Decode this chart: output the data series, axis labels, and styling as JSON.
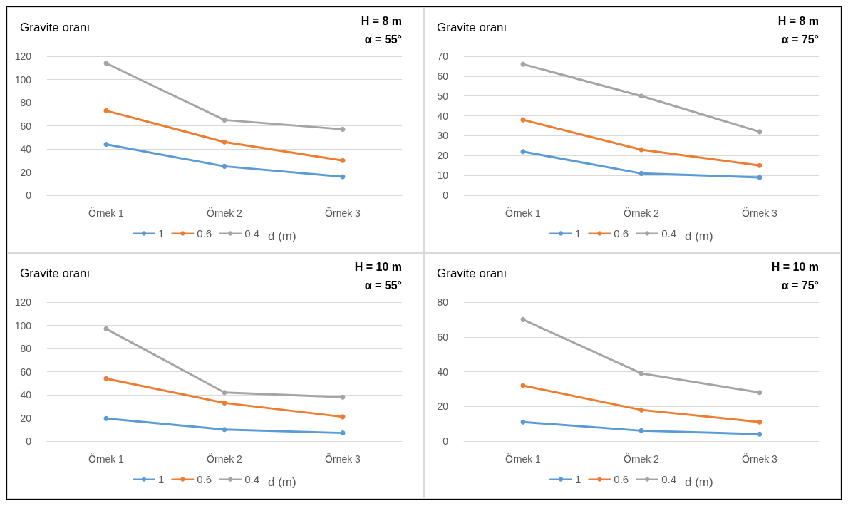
{
  "chart_data": [
    {
      "type": "line",
      "title": "Gravite oranı",
      "annotations": [
        "H = 8 m",
        "α = 55°"
      ],
      "categories": [
        "Örnek 1",
        "Örnek 2",
        "Örnek 3"
      ],
      "ylim": [
        0,
        120
      ],
      "yticks": [
        0,
        20,
        40,
        60,
        80,
        100,
        120
      ],
      "grid": "y",
      "legend": "bottom",
      "legend_title": "d (m)",
      "marker": "circle",
      "line_style": "solid",
      "series": [
        {
          "name": "1",
          "color": "#5b9bd5",
          "values": [
            44,
            25,
            16
          ]
        },
        {
          "name": "0.6",
          "color": "#ed7d31",
          "values": [
            73,
            46,
            30
          ]
        },
        {
          "name": "0.4",
          "color": "#a5a5a5",
          "values": [
            114,
            65,
            57
          ]
        }
      ]
    },
    {
      "type": "line",
      "title": "Gravite oranı",
      "annotations": [
        "H = 8 m",
        "α = 75°"
      ],
      "categories": [
        "Örnek 1",
        "Örnek 2",
        "Örnek 3"
      ],
      "ylim": [
        0,
        70
      ],
      "yticks": [
        0,
        10,
        20,
        30,
        40,
        50,
        60,
        70
      ],
      "grid": "y",
      "legend": "bottom",
      "legend_title": "d (m)",
      "marker": "circle",
      "line_style": "solid",
      "series": [
        {
          "name": "1",
          "color": "#5b9bd5",
          "values": [
            22,
            11,
            9
          ]
        },
        {
          "name": "0.6",
          "color": "#ed7d31",
          "values": [
            38,
            23,
            15
          ]
        },
        {
          "name": "0.4",
          "color": "#a5a5a5",
          "values": [
            66,
            50,
            32
          ]
        }
      ]
    },
    {
      "type": "line",
      "title": "Gravite oranı",
      "annotations": [
        "H = 10 m",
        "α = 55°"
      ],
      "categories": [
        "Örnek 1",
        "Örnek 2",
        "Örnek 3"
      ],
      "ylim": [
        0,
        120
      ],
      "yticks": [
        0,
        20,
        40,
        60,
        80,
        100,
        120
      ],
      "grid": "y",
      "legend": "bottom",
      "legend_title": "d (m)",
      "marker": "circle",
      "line_style": "solid",
      "series": [
        {
          "name": "1",
          "color": "#5b9bd5",
          "values": [
            19.5,
            10,
            7
          ]
        },
        {
          "name": "0.6",
          "color": "#ed7d31",
          "values": [
            54,
            33,
            21
          ]
        },
        {
          "name": "0.4",
          "color": "#a5a5a5",
          "values": [
            97,
            42,
            38
          ]
        }
      ]
    },
    {
      "type": "line",
      "title": "Gravite oranı",
      "annotations": [
        "H = 10 m",
        "α = 75°"
      ],
      "categories": [
        "Örnek 1",
        "Örnek 2",
        "Örnek 3"
      ],
      "ylim": [
        0,
        80
      ],
      "yticks": [
        0,
        20,
        40,
        60,
        80
      ],
      "grid": "y",
      "legend": "bottom",
      "legend_title": "d (m)",
      "marker": "circle",
      "line_style": "solid",
      "series": [
        {
          "name": "1",
          "color": "#5b9bd5",
          "values": [
            11,
            6,
            4
          ]
        },
        {
          "name": "0.6",
          "color": "#ed7d31",
          "values": [
            32,
            18,
            11
          ]
        },
        {
          "name": "0.4",
          "color": "#a5a5a5",
          "values": [
            70,
            39,
            28
          ]
        }
      ]
    }
  ]
}
